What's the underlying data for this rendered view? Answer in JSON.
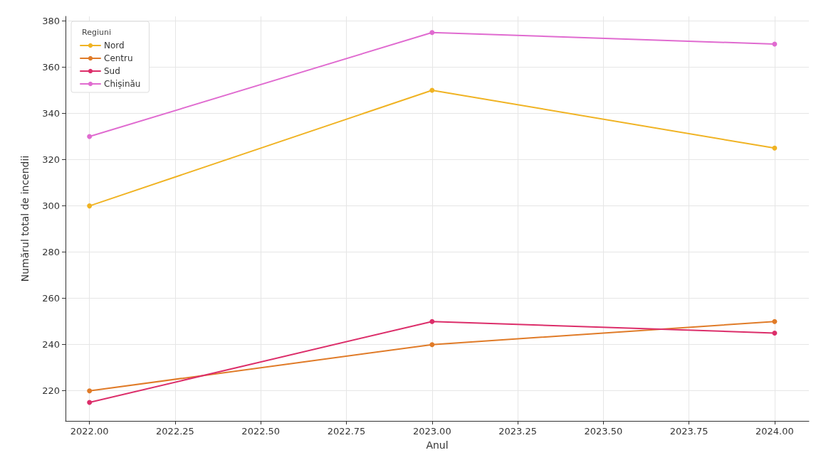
{
  "chart_data": {
    "type": "line",
    "xlabel": "Anul",
    "ylabel": "Numărul total de incendii",
    "legend_title": "Regiuni",
    "legend": "top left",
    "grid": true,
    "marker": "circle",
    "line_style": "solid",
    "x": [
      2022,
      2023,
      2024
    ],
    "xlim": [
      2021.93,
      2024.1
    ],
    "xticks": [
      {
        "value": 2022,
        "label": "2022.00"
      },
      {
        "value": 2022.25,
        "label": "2022.25"
      },
      {
        "value": 2022.5,
        "label": "2022.50"
      },
      {
        "value": 2022.75,
        "label": "2022.75"
      },
      {
        "value": 2023,
        "label": "2023.00"
      },
      {
        "value": 2023.25,
        "label": "2023.25"
      },
      {
        "value": 2023.5,
        "label": "2023.50"
      },
      {
        "value": 2023.75,
        "label": "2023.75"
      },
      {
        "value": 2024,
        "label": "2024.00"
      }
    ],
    "ylim": [
      207,
      382
    ],
    "yticks": [
      220,
      240,
      260,
      280,
      300,
      320,
      340,
      360,
      380
    ],
    "series": [
      {
        "name": "Nord",
        "color": "#f0b323",
        "values": [
          300,
          350,
          325
        ]
      },
      {
        "name": "Centru",
        "color": "#e07b28",
        "values": [
          220,
          240,
          250
        ]
      },
      {
        "name": "Sud",
        "color": "#dc2e6a",
        "values": [
          215,
          250,
          245
        ]
      },
      {
        "name": "Chișinău",
        "color": "#e06bd0",
        "values": [
          330,
          375,
          370
        ]
      }
    ]
  }
}
